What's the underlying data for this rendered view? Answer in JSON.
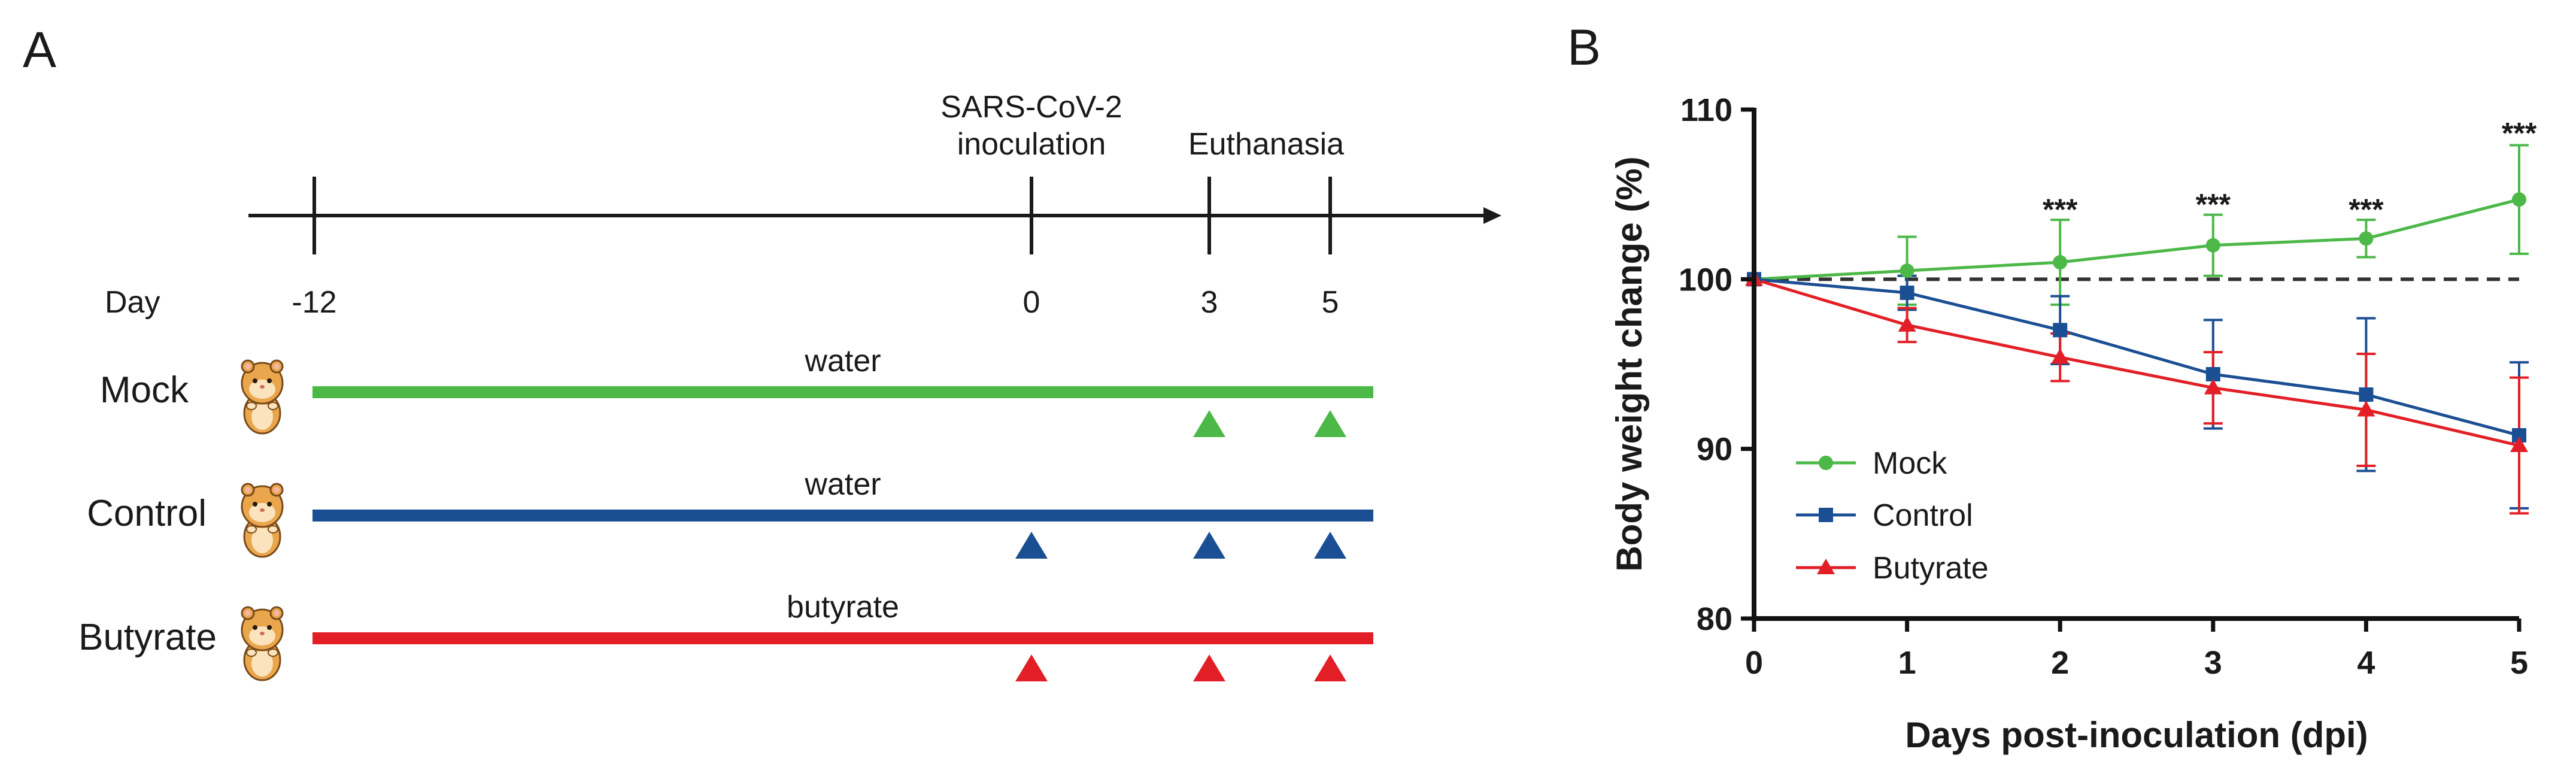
{
  "panels": {
    "a": {
      "letter": "A",
      "day_label": "Day",
      "day_ticks": [
        "-12",
        "0",
        "3",
        "5"
      ],
      "events": {
        "inoculation": [
          "SARS-CoV-2",
          "inoculation"
        ],
        "euthanasia": "Euthanasia"
      },
      "groups": [
        {
          "name": "Mock",
          "drink": "water",
          "color": "#4cb848",
          "markers_at_days": [
            "3",
            "5"
          ]
        },
        {
          "name": "Control",
          "drink": "water",
          "color": "#1b4f93",
          "markers_at_days": [
            "0",
            "3",
            "5"
          ]
        },
        {
          "name": "Butyrate",
          "drink": "butyrate",
          "color": "#e21f26",
          "markers_at_days": [
            "0",
            "3",
            "5"
          ]
        }
      ],
      "animal_icon": "hamster-icon"
    },
    "b": {
      "letter": "B"
    }
  },
  "chart_data": {
    "type": "line",
    "title": "",
    "xlabel": "Days post-inoculation (dpi)",
    "ylabel": "Body weight change (%)",
    "x": [
      0,
      1,
      2,
      3,
      4,
      5
    ],
    "xlim": [
      0,
      5
    ],
    "ylim": [
      80,
      110
    ],
    "x_ticks": [
      "0",
      "1",
      "2",
      "3",
      "4",
      "5"
    ],
    "y_ticks": [
      "80",
      "90",
      "100",
      "110"
    ],
    "reference_line": {
      "y": 100,
      "style": "dashed"
    },
    "legend_position": "bottom-left",
    "series": [
      {
        "name": "Mock",
        "color": "#4cb848",
        "marker": "circle",
        "values": [
          100,
          100.5,
          101.0,
          102.0,
          102.4,
          104.7
        ],
        "error": [
          0,
          2.0,
          2.5,
          1.8,
          1.1,
          3.2
        ]
      },
      {
        "name": "Control",
        "color": "#1b4f93",
        "marker": "square",
        "values": [
          100,
          99.2,
          97.0,
          94.4,
          93.2,
          90.8
        ],
        "error": [
          0,
          1.0,
          2.0,
          3.2,
          4.5,
          4.3
        ]
      },
      {
        "name": "Butyrate",
        "color": "#e21f26",
        "marker": "triangle",
        "values": [
          100,
          97.3,
          95.4,
          93.6,
          92.3,
          90.2
        ],
        "error": [
          0,
          1.0,
          1.4,
          2.1,
          3.3,
          4.0
        ]
      }
    ],
    "annotations": [
      {
        "x": 2,
        "y": 103.5,
        "text": "***"
      },
      {
        "x": 3,
        "y": 103.8,
        "text": "***"
      },
      {
        "x": 4,
        "y": 103.5,
        "text": "***"
      },
      {
        "x": 5,
        "y": 108.0,
        "text": "***"
      }
    ]
  }
}
